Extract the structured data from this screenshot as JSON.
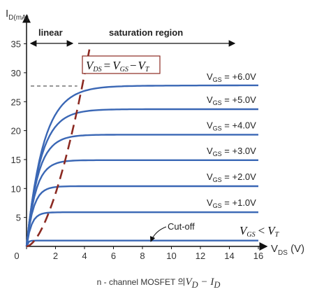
{
  "chart_data": {
    "type": "line",
    "ylabel": {
      "main": "I",
      "sub": "D(mA)"
    },
    "xlabel": {
      "main": "V",
      "sub": "DS",
      "unit": " (V)"
    },
    "xlim": [
      0,
      16.5
    ],
    "ylim": [
      0,
      36
    ],
    "xticks": [
      0,
      2,
      4,
      6,
      8,
      10,
      12,
      14,
      16
    ],
    "yticks": [
      0,
      5,
      10,
      15,
      20,
      25,
      30,
      35
    ],
    "regions": {
      "linear": "linear",
      "saturation": "saturation region"
    },
    "boundary_label": {
      "lhs": "V",
      "lhs_sub": "DS",
      "eq": "=",
      "a": "V",
      "a_sub": "GS",
      "minus": "−",
      "b": "V",
      "b_sub": "T"
    },
    "series": [
      {
        "name": "VGS = +6.0V",
        "label_main": "V",
        "label_sub": "GS",
        "label_rest": " = +6.0V",
        "sat_current": 27.7,
        "sat_voltage": 3.7
      },
      {
        "name": "VGS = +5.0V",
        "label_main": "V",
        "label_sub": "GS",
        "label_rest": " = +5.0V",
        "sat_current": 23.7,
        "sat_voltage": 3.1
      },
      {
        "name": "VGS = +4.0V",
        "label_main": "V",
        "label_sub": "GS",
        "label_rest": " = +4.0V",
        "sat_current": 19.3,
        "sat_voltage": 2.5
      },
      {
        "name": "VGS = +3.0V",
        "label_main": "V",
        "label_sub": "GS",
        "label_rest": " = +3.0V",
        "sat_current": 14.9,
        "sat_voltage": 2.0
      },
      {
        "name": "VGS = +2.0V",
        "label_main": "V",
        "label_sub": "GS",
        "label_rest": " = +2.0V",
        "sat_current": 10.4,
        "sat_voltage": 1.5
      },
      {
        "name": "VGS = +1.0V",
        "label_main": "V",
        "label_sub": "GS",
        "label_rest": " = +1.0V",
        "sat_current": 5.9,
        "sat_voltage": 1.1
      },
      {
        "name": "Cut-off",
        "label_main": "",
        "label_sub": "",
        "label_rest": "",
        "sat_current": 1.0,
        "sat_voltage": 0.3
      }
    ],
    "cutoff_label": "Cut-off",
    "cutoff_condition": {
      "a": "V",
      "a_sub": "GS",
      "op": "<",
      "b": "V",
      "b_sub": "T"
    },
    "dashed_reference_y": 27.7,
    "colors": {
      "curve": "#3a67b5",
      "boundary": "#8b2a22",
      "axis": "#111111"
    }
  },
  "caption": {
    "prefix": "n - channel MOSFET 의",
    "math": "V",
    "math_sub": "D",
    "math_mid": " − ",
    "math2": "I",
    "math2_sub": "D"
  }
}
